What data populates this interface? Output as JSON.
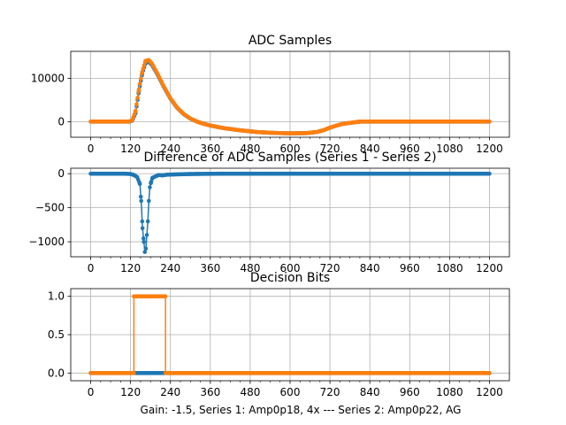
{
  "figure": {
    "xlabel": "Gain: -1.5, Series 1: Amp0p18, 4x --- Series 2: Amp0p22, AG"
  },
  "colors": {
    "series1": "#1f77b4",
    "series2": "#ff7f0e",
    "grid": "#b0b0b0"
  },
  "chart_data": [
    {
      "type": "line",
      "title": "ADC Samples",
      "xlim": [
        -60,
        1260
      ],
      "ylim": [
        -3600,
        16200
      ],
      "xticks": [
        0,
        120,
        240,
        360,
        480,
        600,
        720,
        840,
        960,
        1080,
        1200
      ],
      "yticks": [
        0,
        10000
      ],
      "grid": true,
      "markers": true,
      "series": [
        {
          "color": "#1f77b4",
          "points": [
            [
              0,
              0
            ],
            [
              115,
              0
            ],
            [
              125,
              200
            ],
            [
              135,
              2000
            ],
            [
              145,
              7000
            ],
            [
              155,
              11000
            ],
            [
              165,
              13500
            ],
            [
              175,
              13800
            ],
            [
              185,
              13000
            ],
            [
              200,
              11000
            ],
            [
              220,
              8000
            ],
            [
              240,
              5300
            ],
            [
              260,
              3200
            ],
            [
              280,
              1700
            ],
            [
              300,
              700
            ],
            [
              320,
              0
            ],
            [
              340,
              -500
            ],
            [
              360,
              -900
            ],
            [
              400,
              -1500
            ],
            [
              450,
              -2000
            ],
            [
              500,
              -2400
            ],
            [
              550,
              -2600
            ],
            [
              600,
              -2700
            ],
            [
              650,
              -2650
            ],
            [
              680,
              -2400
            ],
            [
              700,
              -2000
            ],
            [
              720,
              -1400
            ],
            [
              740,
              -900
            ],
            [
              760,
              -500
            ],
            [
              790,
              -200
            ],
            [
              810,
              0
            ],
            [
              1200,
              0
            ]
          ]
        },
        {
          "color": "#ff7f0e",
          "points": [
            [
              0,
              0
            ],
            [
              115,
              0
            ],
            [
              125,
              300
            ],
            [
              135,
              2500
            ],
            [
              145,
              7500
            ],
            [
              155,
              11500
            ],
            [
              165,
              14000
            ],
            [
              175,
              14200
            ],
            [
              185,
              13300
            ],
            [
              200,
              11200
            ],
            [
              220,
              8100
            ],
            [
              240,
              5400
            ],
            [
              260,
              3250
            ],
            [
              280,
              1750
            ],
            [
              300,
              720
            ],
            [
              320,
              0
            ],
            [
              340,
              -500
            ],
            [
              360,
              -900
            ],
            [
              400,
              -1500
            ],
            [
              450,
              -2000
            ],
            [
              500,
              -2400
            ],
            [
              550,
              -2600
            ],
            [
              600,
              -2700
            ],
            [
              650,
              -2650
            ],
            [
              680,
              -2400
            ],
            [
              700,
              -2000
            ],
            [
              720,
              -1400
            ],
            [
              740,
              -900
            ],
            [
              760,
              -500
            ],
            [
              790,
              -200
            ],
            [
              810,
              0
            ],
            [
              1200,
              0
            ]
          ]
        }
      ]
    },
    {
      "type": "line",
      "title": "Difference of ADC Samples (Series 1 - Series 2)",
      "xlim": [
        -60,
        1260
      ],
      "ylim": [
        -1220,
        80
      ],
      "xticks": [
        0,
        120,
        240,
        360,
        480,
        600,
        720,
        840,
        960,
        1080,
        1200
      ],
      "yticks": [
        0,
        -500,
        -1000
      ],
      "grid": true,
      "markers": true,
      "series": [
        {
          "color": "#1f77b4",
          "points": [
            [
              0,
              0
            ],
            [
              100,
              0
            ],
            [
              120,
              -5
            ],
            [
              130,
              -20
            ],
            [
              140,
              -50
            ],
            [
              148,
              -150
            ],
            [
              152,
              -400
            ],
            [
              156,
              -800
            ],
            [
              160,
              -1000
            ],
            [
              163,
              -1150
            ],
            [
              166,
              -1100
            ],
            [
              169,
              -900
            ],
            [
              172,
              -700
            ],
            [
              175,
              -400
            ],
            [
              178,
              -200
            ],
            [
              182,
              -120
            ],
            [
              186,
              -60
            ],
            [
              195,
              -40
            ],
            [
              205,
              -20
            ],
            [
              215,
              -25
            ],
            [
              230,
              -15
            ],
            [
              260,
              -10
            ],
            [
              300,
              -5
            ],
            [
              400,
              0
            ],
            [
              600,
              0
            ],
            [
              800,
              0
            ],
            [
              1000,
              0
            ],
            [
              1200,
              0
            ]
          ]
        }
      ]
    },
    {
      "type": "line",
      "title": "Decision Bits",
      "xlim": [
        -60,
        1260
      ],
      "ylim": [
        -0.1,
        1.1
      ],
      "xticks": [
        0,
        120,
        240,
        360,
        480,
        600,
        720,
        840,
        960,
        1080,
        1200
      ],
      "yticks": [
        0.0,
        0.5,
        1.0
      ],
      "ytick_labels": [
        "0.0",
        "0.5",
        "1.0"
      ],
      "grid": true,
      "markers": true,
      "series": [
        {
          "color": "#1f77b4",
          "points": [
            [
              0,
              0
            ],
            [
              1200,
              0
            ]
          ]
        },
        {
          "color": "#ff7f0e",
          "points": [
            [
              0,
              0
            ],
            [
              130,
              0
            ],
            [
              130,
              1
            ],
            [
              225,
              1
            ],
            [
              225,
              0
            ],
            [
              1200,
              0
            ]
          ]
        }
      ]
    }
  ]
}
